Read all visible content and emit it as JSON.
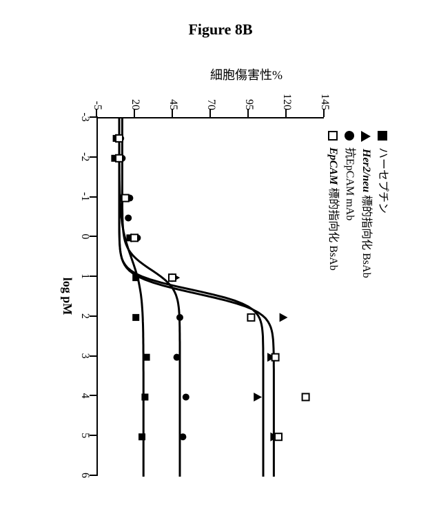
{
  "figure": {
    "title": "Figure 8B",
    "title_fontsize": 22,
    "title_weight": "bold"
  },
  "chart": {
    "type": "line",
    "rotated_deg": 90,
    "background_color": "#ffffff",
    "axis_color": "#000000",
    "axis_width": 2,
    "curve_width": 3,
    "curve_color": "#000000",
    "marker_size": 10,
    "xlabel": "log pM",
    "ylabel": "細胞傷害性%",
    "label_fontsize": 18,
    "tick_fontsize": 16,
    "xlim": [
      -3,
      6
    ],
    "ylim": [
      -5,
      145
    ],
    "xticks": [
      -3,
      -2,
      -1,
      0,
      1,
      2,
      3,
      4,
      5,
      6
    ],
    "yticks": [
      -5,
      20,
      45,
      70,
      95,
      120,
      145
    ],
    "legend": {
      "position": "top-left",
      "items": [
        {
          "marker": "filled-square",
          "label_parts": [
            {
              "t": "ハーセプチン",
              "style": "normal"
            }
          ]
        },
        {
          "marker": "filled-triangle",
          "label_parts": [
            {
              "t": "Her2/neu",
              "style": "bi"
            },
            {
              "t": " 標的指向化 BsAb",
              "style": "normal"
            }
          ]
        },
        {
          "marker": "filled-circle",
          "label_parts": [
            {
              "t": "抗EpCAM mAb",
              "style": "normal"
            }
          ]
        },
        {
          "marker": "open-square",
          "label_parts": [
            {
              "t": "EpCAM",
              "style": "bi"
            },
            {
              "t": " 標的指向化 BsAb",
              "style": "normal"
            }
          ]
        }
      ]
    },
    "series": [
      {
        "name": "herceptin",
        "marker": "filled-square",
        "points": [
          {
            "x": -2.5,
            "y": 8
          },
          {
            "x": -2.0,
            "y": 7
          },
          {
            "x": -1.0,
            "y": 12
          },
          {
            "x": 0.0,
            "y": 17
          },
          {
            "x": 1.0,
            "y": 21
          },
          {
            "x": 2.0,
            "y": 21
          },
          {
            "x": 3.0,
            "y": 28
          },
          {
            "x": 4.0,
            "y": 27
          },
          {
            "x": 5.0,
            "y": 25
          }
        ],
        "curve": {
          "y_lo": 10,
          "y_hi": 26,
          "xmid": 0.5,
          "slope": 1.0
        }
      },
      {
        "name": "her2neu-bsab",
        "marker": "filled-triangle",
        "points": [
          {
            "x": -2.5,
            "y": 10
          },
          {
            "x": -1.0,
            "y": 12
          },
          {
            "x": 0.0,
            "y": 20
          },
          {
            "x": 1.0,
            "y": 47
          },
          {
            "x": 2.0,
            "y": 118
          },
          {
            "x": 3.0,
            "y": 110
          },
          {
            "x": 4.0,
            "y": 101
          },
          {
            "x": 5.0,
            "y": 112
          }
        ],
        "curve": {
          "y_lo": 10,
          "y_hi": 105,
          "xmid": 1.3,
          "slope": 2.2
        }
      },
      {
        "name": "anti-epcam-mab",
        "marker": "filled-circle",
        "points": [
          {
            "x": -2.5,
            "y": 11
          },
          {
            "x": -2.0,
            "y": 12
          },
          {
            "x": -1.0,
            "y": 17
          },
          {
            "x": -0.5,
            "y": 16
          },
          {
            "x": 0.0,
            "y": 22
          },
          {
            "x": 1.0,
            "y": 46
          },
          {
            "x": 2.0,
            "y": 50
          },
          {
            "x": 3.0,
            "y": 48
          },
          {
            "x": 4.0,
            "y": 54
          },
          {
            "x": 5.0,
            "y": 52
          }
        ],
        "curve": {
          "y_lo": 12,
          "y_hi": 50,
          "xmid": 0.8,
          "slope": 1.8
        }
      },
      {
        "name": "epcam-bsab",
        "marker": "open-square",
        "points": [
          {
            "x": -2.5,
            "y": 10
          },
          {
            "x": -2.0,
            "y": 10
          },
          {
            "x": -1.0,
            "y": 14
          },
          {
            "x": 0.0,
            "y": 20
          },
          {
            "x": 1.0,
            "y": 45
          },
          {
            "x": 2.0,
            "y": 97
          },
          {
            "x": 3.0,
            "y": 113
          },
          {
            "x": 4.0,
            "y": 133
          },
          {
            "x": 5.0,
            "y": 115
          }
        ],
        "curve": {
          "y_lo": 10,
          "y_hi": 112,
          "xmid": 1.4,
          "slope": 2.0
        }
      }
    ]
  }
}
